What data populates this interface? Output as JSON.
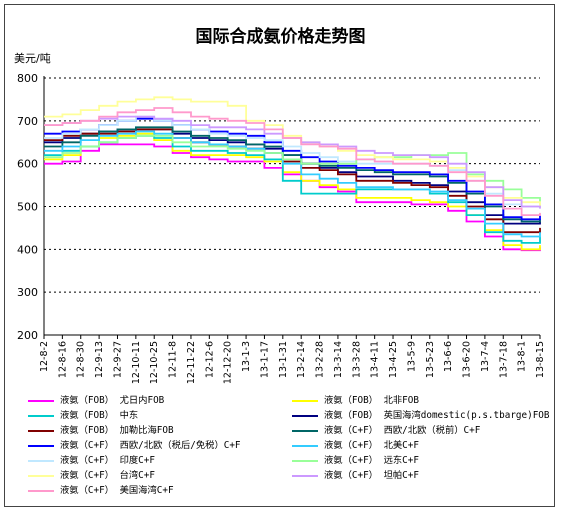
{
  "chart_data": {
    "type": "line",
    "title": "国际合成氨价格走势图",
    "ylabel": "美元/吨",
    "ylim": [
      200,
      800
    ],
    "yticks": [
      "200",
      "300",
      "400",
      "500",
      "600",
      "700",
      "800"
    ],
    "grid": true,
    "legend_position": "bottom",
    "x": [
      "12-8-2",
      "12-8-16",
      "12-8-30",
      "12-9-13",
      "12-9-27",
      "12-10-11",
      "12-10-25",
      "12-11-8",
      "12-11-22",
      "12-12-6",
      "12-12-20",
      "13-1-3",
      "13-1-17",
      "13-1-31",
      "13-2-14",
      "13-2-28",
      "13-3-14",
      "13-3-28",
      "13-4-11",
      "13-4-25",
      "13-5-9",
      "13-5-23",
      "13-6-6",
      "13-6-20",
      "13-7-4",
      "13-7-18",
      "13-8-1",
      "13-8-15"
    ],
    "series": [
      {
        "name": "液氨（FOB） 尤日内FOB",
        "color": "#ff00ff",
        "values": [
          600,
          605,
          630,
          645,
          645,
          645,
          640,
          625,
          615,
          610,
          605,
          605,
          590,
          575,
          560,
          545,
          535,
          510,
          510,
          510,
          505,
          505,
          490,
          465,
          430,
          400,
          398,
          405
        ]
      },
      {
        "name": "液氨（FOB） 北非FOB",
        "color": "#ffff00",
        "values": [
          610,
          620,
          640,
          660,
          665,
          670,
          655,
          630,
          620,
          620,
          620,
          615,
          605,
          580,
          560,
          550,
          540,
          520,
          520,
          520,
          515,
          510,
          500,
          480,
          445,
          410,
          400,
          410
        ]
      },
      {
        "name": "液氨（FOB） 中东",
        "color": "#00cccc",
        "values": [
          620,
          630,
          640,
          650,
          660,
          665,
          660,
          640,
          630,
          630,
          625,
          620,
          610,
          560,
          530,
          530,
          530,
          540,
          540,
          540,
          540,
          530,
          510,
          480,
          440,
          420,
          415,
          430
        ]
      },
      {
        "name": "液氨（FOB） 英国海湾domestic(p.s.tbarge)FOB",
        "color": "#000080",
        "values": [
          650,
          660,
          670,
          675,
          680,
          680,
          680,
          670,
          660,
          655,
          650,
          645,
          635,
          620,
          600,
          590,
          580,
          570,
          570,
          560,
          555,
          550,
          535,
          510,
          480,
          460,
          460,
          465
        ]
      },
      {
        "name": "液氨（FOB） 加勒比海FOB",
        "color": "#800000",
        "values": [
          655,
          665,
          670,
          670,
          675,
          680,
          680,
          660,
          650,
          645,
          640,
          635,
          625,
          605,
          590,
          585,
          575,
          560,
          560,
          555,
          550,
          545,
          525,
          500,
          470,
          440,
          440,
          450
        ]
      },
      {
        "name": "液氨（C+F） 西欧/北欧（税前）C+F",
        "color": "#006666",
        "values": [
          640,
          650,
          665,
          675,
          680,
          685,
          685,
          675,
          665,
          660,
          655,
          645,
          640,
          620,
          600,
          595,
          590,
          585,
          580,
          575,
          575,
          570,
          555,
          530,
          500,
          470,
          465,
          470
        ]
      },
      {
        "name": "液氨（C+F） 西欧/北欧（税后/免税）C+F",
        "color": "#0000ff",
        "values": [
          670,
          675,
          680,
          690,
          700,
          705,
          700,
          690,
          680,
          675,
          670,
          665,
          650,
          630,
          615,
          605,
          595,
          590,
          585,
          580,
          580,
          575,
          560,
          535,
          505,
          475,
          470,
          480
        ]
      },
      {
        "name": "液氨（C+F） 北美C+F",
        "color": "#33ccff",
        "values": [
          630,
          640,
          655,
          665,
          670,
          675,
          670,
          660,
          650,
          645,
          640,
          635,
          625,
          600,
          575,
          565,
          555,
          545,
          545,
          540,
          540,
          535,
          515,
          495,
          460,
          435,
          430,
          440
        ]
      },
      {
        "name": "液氨（C+F） 印度C+F",
        "color": "#c0e8ff",
        "values": [
          660,
          670,
          680,
          690,
          700,
          710,
          700,
          690,
          680,
          670,
          665,
          660,
          655,
          640,
          625,
          615,
          605,
          600,
          600,
          600,
          600,
          595,
          585,
          560,
          530,
          505,
          500,
          510
        ]
      },
      {
        "name": "液氨（C+F） 远东C+F",
        "color": "#99ff99",
        "values": [
          615,
          625,
          640,
          650,
          660,
          665,
          665,
          650,
          640,
          640,
          635,
          630,
          625,
          610,
          600,
          600,
          600,
          610,
          615,
          615,
          620,
          620,
          625,
          575,
          560,
          540,
          520,
          510
        ]
      },
      {
        "name": "液氨（C+F） 台湾C+F",
        "color": "#ffff99",
        "values": [
          710,
          715,
          725,
          735,
          745,
          750,
          755,
          750,
          745,
          745,
          735,
          700,
          690,
          665,
          650,
          640,
          630,
          620,
          615,
          610,
          610,
          605,
          590,
          570,
          545,
          520,
          510,
          500
        ]
      },
      {
        "name": "液氨（C+F） 坦帕C+F",
        "color": "#cc99ff",
        "values": [
          690,
          695,
          700,
          705,
          710,
          710,
          705,
          700,
          690,
          685,
          685,
          680,
          670,
          660,
          650,
          645,
          640,
          630,
          625,
          620,
          620,
          615,
          600,
          580,
          545,
          515,
          500,
          495
        ]
      },
      {
        "name": "液氨（C+F） 美国海湾C+F",
        "color": "#ff99cc",
        "values": [
          690,
          695,
          700,
          710,
          720,
          725,
          730,
          720,
          710,
          705,
          700,
          695,
          680,
          660,
          645,
          640,
          635,
          610,
          605,
          600,
          600,
          595,
          580,
          560,
          525,
          495,
          480,
          485
        ]
      }
    ]
  }
}
